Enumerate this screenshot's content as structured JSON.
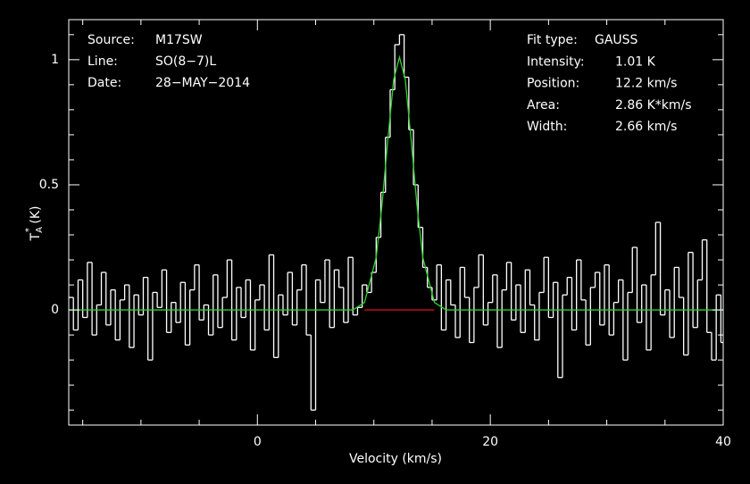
{
  "chart_data": {
    "type": "line",
    "step": true,
    "background": "#000000",
    "frame_color": "#ffffff",
    "xlabel": "Velocity (km/s)",
    "ylabel": {
      "symbol": "T",
      "subscript": "A",
      "superscript": "*",
      "unit": " (K)"
    },
    "xlim": [
      -16.2,
      40
    ],
    "ylim": [
      -0.46,
      1.16
    ],
    "xticks": [
      0,
      20,
      40
    ],
    "yticks": [
      0,
      0.5,
      1
    ],
    "xminorticks": [
      -15,
      -10,
      -5,
      5,
      10,
      15,
      25,
      30,
      35
    ],
    "yminorticks": [
      -0.4,
      -0.3,
      -0.2,
      -0.1,
      0.1,
      0.2,
      0.3,
      0.4,
      0.6,
      0.7,
      0.8,
      0.9,
      1.1
    ],
    "annotations_left": [
      {
        "label": "Source:",
        "value": "M17SW"
      },
      {
        "label": "Line:",
        "value": "SO(8−7)L"
      },
      {
        "label": "Date:",
        "value": "28−MAY−2014"
      }
    ],
    "annotations_right": [
      {
        "label": "Fit type:",
        "value": "GAUSS"
      },
      {
        "label": "Intensity:",
        "value": "1.01 K"
      },
      {
        "label": "Position:",
        "value": "12.2 km/s"
      },
      {
        "label": "Area:",
        "value": "2.86 K*km/s"
      },
      {
        "label": "Width:",
        "value": "2.66 km/s"
      }
    ],
    "series": [
      {
        "color": "#ffffff",
        "step": true,
        "x": [
          -16,
          -15.6,
          -15.2,
          -14.8,
          -14.4,
          -14,
          -13.6,
          -13.2,
          -12.8,
          -12.4,
          -12,
          -11.6,
          -11.2,
          -10.8,
          -10.4,
          -10,
          -9.6,
          -9.2,
          -8.8,
          -8.4,
          -8,
          -7.6,
          -7.2,
          -6.8,
          -6.4,
          -6,
          -5.6,
          -5.2,
          -4.8,
          -4.4,
          -4,
          -3.6,
          -3.2,
          -2.8,
          -2.4,
          -2,
          -1.6,
          -1.2,
          -0.8,
          -0.4,
          0,
          0.4,
          0.8,
          1.2,
          1.6,
          2,
          2.4,
          2.8,
          3.2,
          3.6,
          4,
          4.4,
          4.8,
          5.2,
          5.6,
          6,
          6.4,
          6.8,
          7.2,
          7.6,
          8,
          8.4,
          8.8,
          9.2,
          9.6,
          10,
          10.4,
          10.8,
          11.2,
          11.6,
          12,
          12.4,
          12.8,
          13.2,
          13.6,
          14,
          14.4,
          14.8,
          15.2,
          15.6,
          16,
          16.4,
          16.8,
          17.2,
          17.6,
          18,
          18.4,
          18.8,
          19.2,
          19.6,
          20,
          20.4,
          20.8,
          21.2,
          21.6,
          22,
          22.4,
          22.8,
          23.2,
          23.6,
          24,
          24.4,
          24.8,
          25.2,
          25.6,
          26,
          26.4,
          26.8,
          27.2,
          27.6,
          28,
          28.4,
          28.8,
          29.2,
          29.6,
          30,
          30.4,
          30.8,
          31.2,
          31.6,
          32,
          32.4,
          32.8,
          33.2,
          33.6,
          34,
          34.4,
          34.8,
          35.2,
          35.6,
          36,
          36.4,
          36.8,
          37.2,
          37.6,
          38,
          38.4,
          38.8,
          39.2,
          39.6,
          40
        ],
        "values": [
          0.05,
          -0.08,
          0.12,
          -0.03,
          0.19,
          -0.1,
          0.02,
          0.15,
          -0.06,
          0.08,
          -0.12,
          0.04,
          0.1,
          -0.15,
          0.06,
          -0.02,
          0.13,
          -0.2,
          0.07,
          0.01,
          0.16,
          -0.09,
          0.03,
          -0.05,
          0.11,
          -0.14,
          0.08,
          0.18,
          -0.04,
          0.02,
          -0.1,
          0.14,
          -0.07,
          0.05,
          0.2,
          -0.12,
          0.09,
          -0.03,
          0.12,
          -0.16,
          0.04,
          0.1,
          -0.08,
          0.22,
          -0.19,
          0.06,
          -0.02,
          0.15,
          -0.06,
          0.08,
          0.18,
          -0.1,
          -0.4,
          0.12,
          0.03,
          0.2,
          -0.07,
          0.16,
          0.09,
          -0.05,
          0.21,
          -0.02,
          0.01,
          0.1,
          0.07,
          0.15,
          0.29,
          0.47,
          0.69,
          0.88,
          1.06,
          1.1,
          0.93,
          0.72,
          0.5,
          0.33,
          0.17,
          0.09,
          0.04,
          0.18,
          -0.08,
          0.12,
          0.02,
          -0.11,
          0.17,
          0.05,
          -0.13,
          0.09,
          0.22,
          -0.06,
          0.03,
          0.14,
          -0.15,
          0.08,
          0.19,
          -0.04,
          0.1,
          -0.09,
          0.16,
          0.02,
          -0.12,
          0.07,
          0.21,
          -0.03,
          0.11,
          -0.27,
          0.06,
          0.13,
          -0.08,
          0.2,
          0.04,
          -0.14,
          0.09,
          0.15,
          -0.06,
          0.18,
          -0.1,
          0.03,
          0.12,
          -0.2,
          0.07,
          0.25,
          -0.05,
          0.1,
          -0.16,
          0.14,
          0.35,
          -0.02,
          0.08,
          -0.11,
          0.17,
          0.05,
          -0.18,
          0.23,
          -0.07,
          0.12,
          0.28,
          -0.09,
          -0.2,
          0.06,
          -0.13
        ]
      },
      {
        "color": "#2fd02f",
        "step": false,
        "x": [
          -16.2,
          8.2,
          9.2,
          10.2,
          10.7,
          11.2,
          11.7,
          12.2,
          12.7,
          13.2,
          13.7,
          14.2,
          15.2,
          16.2,
          40
        ],
        "values": [
          0,
          0,
          0.03,
          0.21,
          0.42,
          0.68,
          0.92,
          1.01,
          0.92,
          0.68,
          0.42,
          0.21,
          0.03,
          0,
          0
        ]
      },
      {
        "color": "#d01010",
        "step": false,
        "x": [
          9.2,
          15.2
        ],
        "values": [
          0,
          0
        ]
      }
    ]
  }
}
